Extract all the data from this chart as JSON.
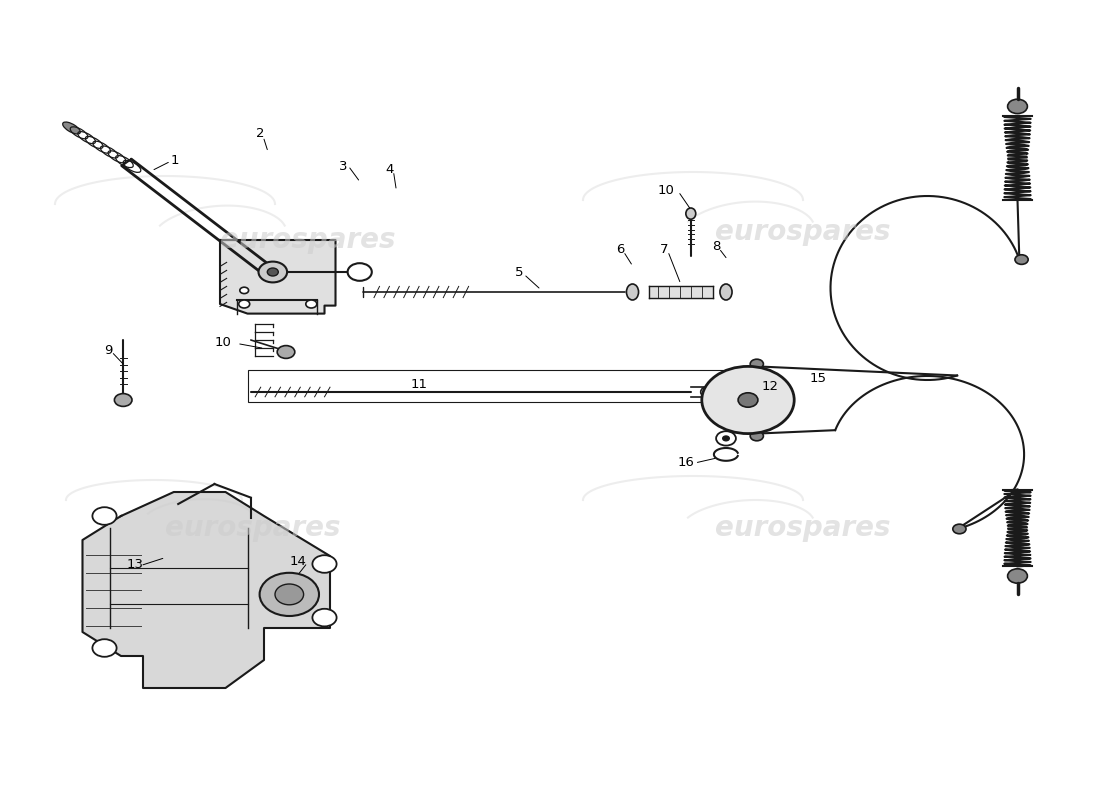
{
  "bg_color": "#ffffff",
  "line_color": "#1a1a1a",
  "watermark_color": "#cccccc",
  "watermark_text": "eurospares"
}
